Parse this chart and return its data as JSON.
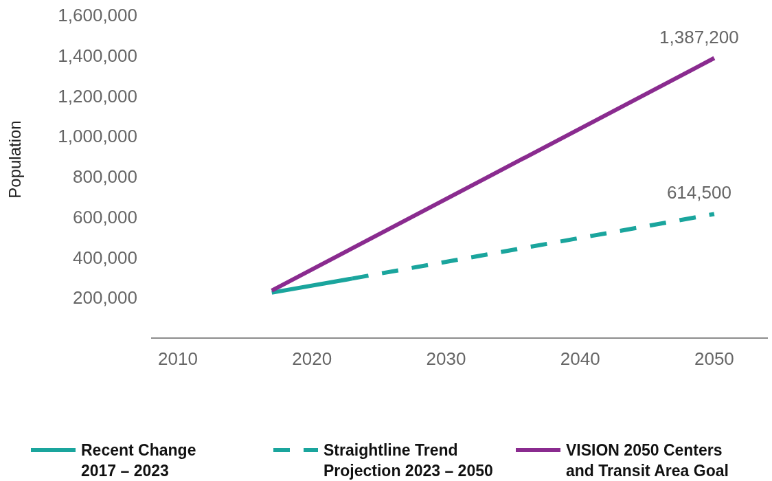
{
  "chart_data": {
    "type": "line",
    "ylabel": "Population",
    "xlim": [
      2008,
      2054
    ],
    "xticks": [
      2010,
      2020,
      2030,
      2040,
      2050
    ],
    "ylim": [
      0,
      1600000
    ],
    "yticks": [
      {
        "value": 200000,
        "label": "200,000"
      },
      {
        "value": 400000,
        "label": "400,000"
      },
      {
        "value": 600000,
        "label": "600,000"
      },
      {
        "value": 800000,
        "label": "800,000"
      },
      {
        "value": 1000000,
        "label": "1,000,000"
      },
      {
        "value": 1200000,
        "label": "1,200,000"
      },
      {
        "value": 1400000,
        "label": "1,400,000"
      },
      {
        "value": 1600000,
        "label": "1,600,000"
      }
    ],
    "legend": "bottom",
    "series": [
      {
        "name": "Recent Change 2017 – 2023",
        "color": "#1aa59d",
        "line_style": "solid",
        "x": [
          2017,
          2023
        ],
        "values": [
          225000,
          295000
        ]
      },
      {
        "name": "Straightline Trend Projection 2023 – 2050",
        "color": "#1aa59d",
        "line_style": "dashed",
        "x": [
          2023,
          2050
        ],
        "values": [
          295000,
          614500
        ],
        "value_labels": [
          null,
          "614,500"
        ]
      },
      {
        "name": "VISION 2050 Centers and Transit Area Goal",
        "color": "#8a2b8f",
        "line_style": "solid",
        "x": [
          2017,
          2050
        ],
        "values": [
          235000,
          1387200
        ],
        "value_labels": [
          null,
          "1,387,200"
        ]
      }
    ]
  }
}
